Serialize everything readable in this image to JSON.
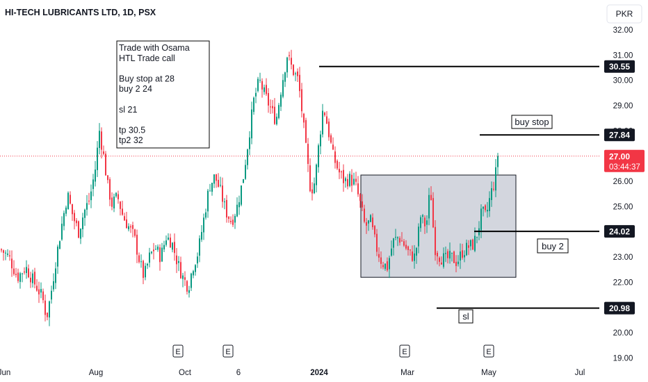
{
  "header": {
    "symbol": "HI-TECH LUBRICANTS LTD, 1D, PSX",
    "currency": "PKR"
  },
  "note_box": {
    "lines": [
      "Trade with Osama",
      "HTL Trade call",
      "",
      "Buy stop at 28",
      "buy 2 24",
      "",
      "sl 21",
      "",
      "tp 30.5",
      "tp2  32"
    ]
  },
  "annotations": {
    "buy_stop_label": "buy stop",
    "buy2_label": "buy 2",
    "sl_label": "sl"
  },
  "price_badges": {
    "current_price": "27.00",
    "countdown": "03:44:37"
  },
  "events": [
    "E",
    "E",
    "E",
    "E"
  ],
  "colors": {
    "up": "#089981",
    "down": "#f23645",
    "current_line": "#f23645",
    "badge_dark": "#131722",
    "zone_fill": "#d1d4dc"
  },
  "chart_data": {
    "type": "candlestick",
    "title": "HI-TECH LUBRICANTS LTD, 1D, PSX",
    "x_labels": [
      "Jun",
      "Aug",
      "Oct",
      "6",
      "2024",
      "Mar",
      "May",
      "Jul"
    ],
    "y_ticks": [
      "32.00",
      "31.00",
      "30.00",
      "29.00",
      "28.00",
      "27.00",
      "26.00",
      "25.00",
      "24.00",
      "23.00",
      "22.00",
      "21.00",
      "20.00",
      "19.00"
    ],
    "ylim": [
      19,
      32.6
    ],
    "current_price": 27.0,
    "levels": [
      {
        "value": 30.55,
        "label": "30.55"
      },
      {
        "value": 27.84,
        "label": "27.84"
      },
      {
        "value": 24.02,
        "label": "24.02"
      },
      {
        "value": 20.98,
        "label": "20.98"
      }
    ],
    "zone": {
      "top": 26.25,
      "bottom": 22.2
    },
    "close_path": [
      [
        0,
        23.3
      ],
      [
        12,
        23.0
      ],
      [
        24,
        22.2
      ],
      [
        36,
        22.6
      ],
      [
        48,
        22.0
      ],
      [
        60,
        21.4
      ],
      [
        66,
        20.6
      ],
      [
        72,
        21.5
      ],
      [
        80,
        23.0
      ],
      [
        88,
        24.3
      ],
      [
        96,
        25.5
      ],
      [
        104,
        24.6
      ],
      [
        112,
        24.0
      ],
      [
        120,
        24.8
      ],
      [
        128,
        25.3
      ],
      [
        136,
        26.5
      ],
      [
        142,
        28.0
      ],
      [
        148,
        27.0
      ],
      [
        154,
        25.8
      ],
      [
        160,
        25.1
      ],
      [
        168,
        25.4
      ],
      [
        176,
        24.6
      ],
      [
        184,
        24.2
      ],
      [
        192,
        23.8
      ],
      [
        200,
        22.8
      ],
      [
        206,
        22.2
      ],
      [
        214,
        23.0
      ],
      [
        222,
        23.4
      ],
      [
        230,
        23.0
      ],
      [
        238,
        23.8
      ],
      [
        246,
        23.6
      ],
      [
        254,
        22.8
      ],
      [
        262,
        22.2
      ],
      [
        270,
        21.8
      ],
      [
        276,
        22.6
      ],
      [
        284,
        23.2
      ],
      [
        292,
        24.5
      ],
      [
        300,
        25.8
      ],
      [
        308,
        26.2
      ],
      [
        316,
        25.6
      ],
      [
        324,
        24.8
      ],
      [
        332,
        24.4
      ],
      [
        340,
        25.0
      ],
      [
        348,
        26.0
      ],
      [
        356,
        27.6
      ],
      [
        364,
        29.2
      ],
      [
        372,
        30.0
      ],
      [
        380,
        29.4
      ],
      [
        388,
        28.9
      ],
      [
        396,
        28.4
      ],
      [
        404,
        29.8
      ],
      [
        412,
        31.0
      ],
      [
        420,
        30.4
      ],
      [
        428,
        30.0
      ],
      [
        434,
        28.6
      ],
      [
        440,
        27.0
      ],
      [
        446,
        25.6
      ],
      [
        452,
        26.0
      ],
      [
        458,
        27.6
      ],
      [
        464,
        29.0
      ],
      [
        470,
        28.2
      ],
      [
        478,
        27.0
      ],
      [
        486,
        26.4
      ],
      [
        494,
        26.0
      ],
      [
        502,
        26.1
      ],
      [
        510,
        25.9
      ],
      [
        518,
        25.0
      ],
      [
        524,
        24.2
      ],
      [
        532,
        24.4
      ],
      [
        540,
        23.4
      ],
      [
        548,
        22.8
      ],
      [
        556,
        22.6
      ],
      [
        564,
        23.6
      ],
      [
        572,
        23.8
      ],
      [
        580,
        23.5
      ],
      [
        588,
        23.1
      ],
      [
        596,
        23.0
      ],
      [
        604,
        24.6
      ],
      [
        612,
        24.2
      ],
      [
        618,
        25.8
      ],
      [
        624,
        23.4
      ],
      [
        632,
        23.0
      ],
      [
        640,
        22.9
      ],
      [
        648,
        23.0
      ],
      [
        656,
        22.8
      ],
      [
        664,
        23.2
      ],
      [
        672,
        23.4
      ],
      [
        680,
        23.5
      ],
      [
        686,
        24.0
      ],
      [
        692,
        24.8
      ],
      [
        698,
        24.6
      ],
      [
        704,
        25.4
      ],
      [
        710,
        26.0
      ],
      [
        716,
        27.0
      ]
    ]
  }
}
